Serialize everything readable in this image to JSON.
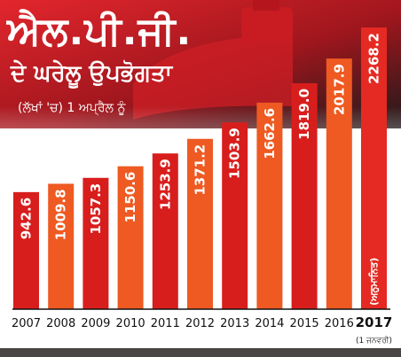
{
  "chart_data": {
    "type": "bar",
    "title": "ਐਲ.ਪੀ.ਜੀ.",
    "subtitle": "ਦੇ ਘਰੇਲੂ ਉਪਭੋਗਤਾ",
    "note": "(ਲੱਖਾਂ 'ਚ) 1 ਅਪ੍ਰੈਲ ਨੂੰ",
    "categories": [
      "2007",
      "2008",
      "2009",
      "2010",
      "2011",
      "2012",
      "2013",
      "2014",
      "2015",
      "2016",
      "2017"
    ],
    "values": [
      942.6,
      1009.8,
      1057.3,
      1150.6,
      1253.9,
      1371.2,
      1503.9,
      1662.6,
      1819.0,
      2017.9,
      2268.2
    ],
    "value_labels": [
      "942.6",
      "1009.8",
      "1057.3",
      "1150.6",
      "1253.9",
      "1371.2",
      "1503.9",
      "1662.6",
      "1819.0",
      "2017.9",
      "2268.2"
    ],
    "last_bar_annotation": "(ਅਨੁਮਾਨਿਤ)",
    "footnote": "(1 ਜਨਵਰੀ)",
    "colors": {
      "bar_light": "#ee5a22",
      "bar_dark": "#d81e1c",
      "bar_last": "#e42a22",
      "banner": "#e3262d",
      "shadow": "#1f1a1b",
      "baseline": "#111111",
      "bottom_band": "#4a4646"
    }
  }
}
